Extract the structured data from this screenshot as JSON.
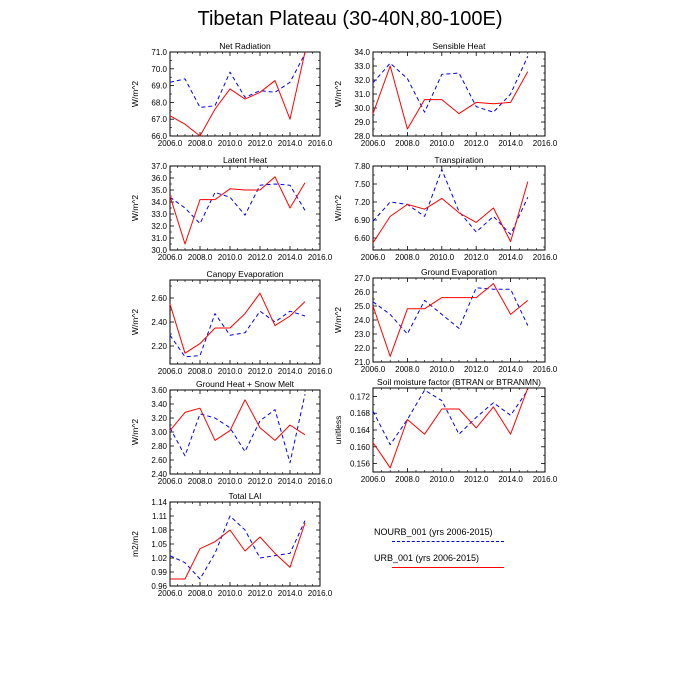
{
  "title": "Tibetan Plateau (30-40N,80-100E)",
  "colors": {
    "urb": "#ff0000",
    "nourb": "#0000ff",
    "axis": "#000000"
  },
  "legend": [
    {
      "label": "NOURB_001 (yrs 2006-2015)",
      "style": "dashed",
      "color": "#0000ff"
    },
    {
      "label": "URB_001 (yrs 2006-2015)",
      "style": "solid",
      "color": "#ff0000"
    }
  ],
  "chart_data": [
    {
      "type": "line",
      "title": "Net Radiation",
      "ylabel": "W/m^2",
      "xlim": [
        2006,
        2016
      ],
      "xticks": [
        2006,
        2008,
        2010,
        2012,
        2014,
        2016
      ],
      "ylim": [
        66,
        71
      ],
      "yticks": [
        66,
        67,
        68,
        69,
        70,
        71
      ],
      "ytick_labels": [
        "66.0",
        "67.0",
        "68.0",
        "69.0",
        "70.0",
        "71.0"
      ],
      "x": [
        2006,
        2007,
        2008,
        2009,
        2010,
        2011,
        2012,
        2013,
        2014,
        2015
      ],
      "series": [
        {
          "name": "NOURB_001 (yrs 2006-2015)",
          "style": "dashed",
          "values": [
            69.2,
            69.4,
            67.7,
            67.8,
            69.8,
            68.3,
            68.7,
            68.6,
            69.2,
            70.9
          ]
        },
        {
          "name": "URB_001 (yrs 2006-2015)",
          "style": "solid",
          "values": [
            67.2,
            66.7,
            66.0,
            67.6,
            68.8,
            68.2,
            68.6,
            69.3,
            67.0,
            71.0
          ]
        }
      ]
    },
    {
      "type": "line",
      "title": "Sensible Heat",
      "ylabel": "W/m^2",
      "xlim": [
        2006,
        2016
      ],
      "xticks": [
        2006,
        2008,
        2010,
        2012,
        2014,
        2016
      ],
      "ylim": [
        28,
        34
      ],
      "yticks": [
        28,
        29,
        30,
        31,
        32,
        33,
        34
      ],
      "ytick_labels": [
        "28.0",
        "29.0",
        "30.0",
        "31.0",
        "32.0",
        "33.0",
        "34.0"
      ],
      "x": [
        2006,
        2007,
        2008,
        2009,
        2010,
        2011,
        2012,
        2013,
        2014,
        2015
      ],
      "series": [
        {
          "name": "NOURB_001 (yrs 2006-2015)",
          "style": "dashed",
          "values": [
            31.8,
            33.2,
            32.1,
            29.7,
            32.4,
            32.5,
            30.1,
            29.7,
            31.0,
            33.7
          ]
        },
        {
          "name": "URB_001 (yrs 2006-2015)",
          "style": "solid",
          "values": [
            29.6,
            33.0,
            28.5,
            30.6,
            30.6,
            29.6,
            30.4,
            30.3,
            30.4,
            32.6
          ]
        }
      ]
    },
    {
      "type": "line",
      "title": "Latent Heat",
      "ylabel": "W/m^2",
      "xlim": [
        2006,
        2016
      ],
      "xticks": [
        2006,
        2008,
        2010,
        2012,
        2014,
        2016
      ],
      "ylim": [
        30,
        37
      ],
      "yticks": [
        30,
        31,
        32,
        33,
        34,
        35,
        36,
        37
      ],
      "ytick_labels": [
        "30.0",
        "31.0",
        "32.0",
        "33.0",
        "34.0",
        "35.0",
        "36.0",
        "37.0"
      ],
      "x": [
        2006,
        2007,
        2008,
        2009,
        2010,
        2011,
        2012,
        2013,
        2014,
        2015
      ],
      "series": [
        {
          "name": "NOURB_001 (yrs 2006-2015)",
          "style": "dashed",
          "values": [
            34.4,
            33.5,
            32.2,
            34.8,
            34.4,
            32.9,
            35.4,
            35.5,
            35.4,
            33.3
          ]
        },
        {
          "name": "URB_001 (yrs 2006-2015)",
          "style": "solid",
          "values": [
            34.5,
            30.5,
            34.2,
            34.2,
            35.1,
            35.0,
            35.0,
            36.1,
            33.5,
            35.6
          ]
        }
      ]
    },
    {
      "type": "line",
      "title": "Transpiration",
      "ylabel": "W/m^2",
      "xlim": [
        2006,
        2016
      ],
      "xticks": [
        2006,
        2008,
        2010,
        2012,
        2014,
        2016
      ],
      "ylim": [
        6.4,
        7.8
      ],
      "yticks": [
        6.6,
        6.9,
        7.2,
        7.5,
        7.8
      ],
      "ytick_labels": [
        "6.60",
        "6.90",
        "7.20",
        "7.50",
        "7.80"
      ],
      "x": [
        2006,
        2007,
        2008,
        2009,
        2010,
        2011,
        2012,
        2013,
        2014,
        2015
      ],
      "series": [
        {
          "name": "NOURB_001 (yrs 2006-2015)",
          "style": "dashed",
          "values": [
            6.88,
            7.2,
            7.16,
            6.96,
            7.74,
            7.04,
            6.7,
            6.96,
            6.66,
            7.28
          ]
        },
        {
          "name": "URB_001 (yrs 2006-2015)",
          "style": "solid",
          "values": [
            6.52,
            6.96,
            7.16,
            7.08,
            7.26,
            7.02,
            6.86,
            7.1,
            6.54,
            7.54
          ]
        }
      ]
    },
    {
      "type": "line",
      "title": "Canopy Evaporation",
      "ylabel": "W/m^2",
      "xlim": [
        2006,
        2016
      ],
      "xticks": [
        2006,
        2008,
        2010,
        2012,
        2014,
        2016
      ],
      "ylim": [
        2.05,
        2.75
      ],
      "yticks": [
        2.2,
        2.4,
        2.6
      ],
      "ytick_labels": [
        "2.20",
        "2.40",
        "2.60"
      ],
      "x": [
        2006,
        2007,
        2008,
        2009,
        2010,
        2011,
        2012,
        2013,
        2014,
        2015
      ],
      "series": [
        {
          "name": "NOURB_001 (yrs 2006-2015)",
          "style": "dashed",
          "values": [
            2.29,
            2.11,
            2.12,
            2.47,
            2.29,
            2.31,
            2.49,
            2.4,
            2.49,
            2.45
          ]
        },
        {
          "name": "URB_001 (yrs 2006-2015)",
          "style": "solid",
          "values": [
            2.55,
            2.14,
            2.22,
            2.35,
            2.35,
            2.47,
            2.64,
            2.37,
            2.45,
            2.57
          ]
        }
      ]
    },
    {
      "type": "line",
      "title": "Ground Evaporation",
      "ylabel": "W/m^2",
      "xlim": [
        2006,
        2016
      ],
      "xticks": [
        2006,
        2008,
        2010,
        2012,
        2014,
        2016
      ],
      "ylim": [
        21,
        27
      ],
      "yticks": [
        21,
        22,
        23,
        24,
        25,
        26,
        27
      ],
      "ytick_labels": [
        "21.0",
        "22.0",
        "23.0",
        "24.0",
        "25.0",
        "26.0",
        "27.0"
      ],
      "x": [
        2006,
        2007,
        2008,
        2009,
        2010,
        2011,
        2012,
        2013,
        2014,
        2015
      ],
      "series": [
        {
          "name": "NOURB_001 (yrs 2006-2015)",
          "style": "dashed",
          "values": [
            25.3,
            24.4,
            23.0,
            25.4,
            24.4,
            23.4,
            26.3,
            26.2,
            26.2,
            23.6
          ]
        },
        {
          "name": "URB_001 (yrs 2006-2015)",
          "style": "solid",
          "values": [
            25.0,
            21.4,
            24.8,
            24.8,
            25.6,
            25.6,
            25.6,
            26.6,
            24.4,
            25.4
          ]
        }
      ]
    },
    {
      "type": "line",
      "title": "Ground Heat + Snow Melt",
      "ylabel": "W/m^2",
      "xlim": [
        2006,
        2016
      ],
      "xticks": [
        2006,
        2008,
        2010,
        2012,
        2014,
        2016
      ],
      "ylim": [
        2.4,
        3.6
      ],
      "yticks": [
        2.4,
        2.6,
        2.8,
        3.0,
        3.2,
        3.4,
        3.6
      ],
      "ytick_labels": [
        "2.40",
        "2.60",
        "2.80",
        "3.00",
        "3.20",
        "3.40",
        "3.60"
      ],
      "x": [
        2006,
        2007,
        2008,
        2009,
        2010,
        2011,
        2012,
        2013,
        2014,
        2015
      ],
      "series": [
        {
          "name": "NOURB_001 (yrs 2006-2015)",
          "style": "dashed",
          "values": [
            3.06,
            2.66,
            3.26,
            3.2,
            3.06,
            2.72,
            3.16,
            3.32,
            2.56,
            3.54
          ]
        },
        {
          "name": "URB_001 (yrs 2006-2015)",
          "style": "solid",
          "values": [
            3.02,
            3.28,
            3.34,
            2.88,
            3.02,
            3.46,
            3.06,
            2.88,
            3.1,
            2.96
          ]
        }
      ]
    },
    {
      "type": "line",
      "title": "Soil moisture factor (BTRAN or BTRANMN)",
      "ylabel": "unitless",
      "xlim": [
        2006,
        2016
      ],
      "xticks": [
        2006,
        2008,
        2010,
        2012,
        2014,
        2016
      ],
      "ylim": [
        0.154,
        0.174
      ],
      "yticks": [
        0.156,
        0.16,
        0.164,
        0.168,
        0.172
      ],
      "ytick_labels": [
        "0.156",
        "0.160",
        "0.164",
        "0.168",
        "0.172"
      ],
      "x": [
        2006,
        2007,
        2008,
        2009,
        2010,
        2011,
        2012,
        2013,
        2014,
        2015
      ],
      "series": [
        {
          "name": "NOURB_001 (yrs 2006-2015)",
          "style": "dashed",
          "values": [
            0.1685,
            0.1605,
            0.1665,
            0.1735,
            0.171,
            0.163,
            0.167,
            0.1705,
            0.1675,
            0.1735
          ]
        },
        {
          "name": "URB_001 (yrs 2006-2015)",
          "style": "solid",
          "values": [
            0.161,
            0.155,
            0.1665,
            0.163,
            0.169,
            0.169,
            0.1645,
            0.1695,
            0.163,
            0.174
          ]
        }
      ]
    },
    {
      "type": "line",
      "title": "Total LAI",
      "ylabel": "m2/m2",
      "xlim": [
        2006,
        2016
      ],
      "xticks": [
        2006,
        2008,
        2010,
        2012,
        2014,
        2016
      ],
      "ylim": [
        0.96,
        1.14
      ],
      "yticks": [
        0.96,
        0.99,
        1.02,
        1.05,
        1.08,
        1.11,
        1.14
      ],
      "ytick_labels": [
        "0.96",
        "0.99",
        "1.02",
        "1.05",
        "1.08",
        "1.11",
        "1.14"
      ],
      "x": [
        2006,
        2007,
        2008,
        2009,
        2010,
        2011,
        2012,
        2013,
        2014,
        2015
      ],
      "series": [
        {
          "name": "NOURB_001 (yrs 2006-2015)",
          "style": "dashed",
          "values": [
            1.025,
            1.01,
            0.975,
            1.03,
            1.11,
            1.08,
            1.02,
            1.025,
            1.03,
            1.1
          ]
        },
        {
          "name": "URB_001 (yrs 2006-2015)",
          "style": "solid",
          "values": [
            0.975,
            0.975,
            1.04,
            1.055,
            1.08,
            1.035,
            1.065,
            1.03,
            1.0,
            1.095
          ]
        }
      ]
    }
  ]
}
